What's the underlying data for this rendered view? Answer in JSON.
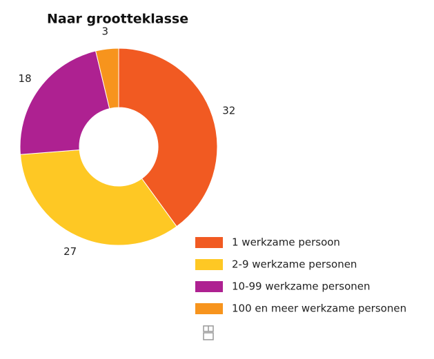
{
  "chart_data": {
    "type": "donut",
    "title": "Naar grootteklasse",
    "categories": [
      "1 werkzame persoon",
      "2-9 werkzame personen",
      "10-99 werkzame personen",
      "100 en meer werkzame personen"
    ],
    "values": [
      32,
      27,
      18,
      3
    ],
    "colors": [
      "#f15a22",
      "#fec824",
      "#ae2191",
      "#f7941d"
    ]
  }
}
